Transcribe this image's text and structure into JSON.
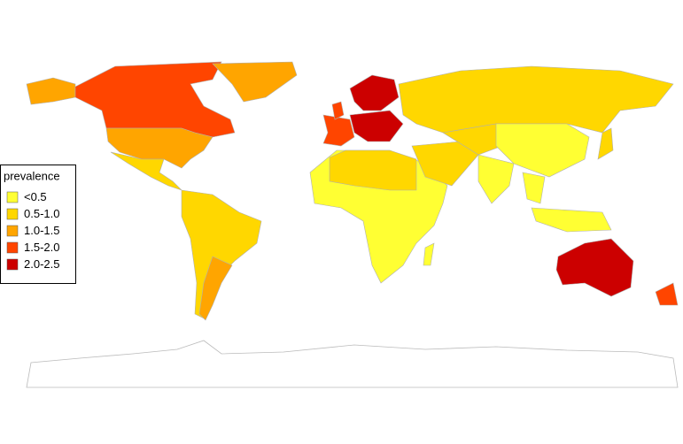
{
  "legend": {
    "title": "prevalence",
    "items": [
      {
        "label": "<0.5",
        "color": "#FFFF33"
      },
      {
        "label": "0.5-1.0",
        "color": "#FFD700"
      },
      {
        "label": "1.0-1.5",
        "color": "#FFA500"
      },
      {
        "label": "1.5-2.0",
        "color": "#FF4500"
      },
      {
        "label": "2.0-2.5",
        "color": "#CC0000"
      }
    ]
  }
}
